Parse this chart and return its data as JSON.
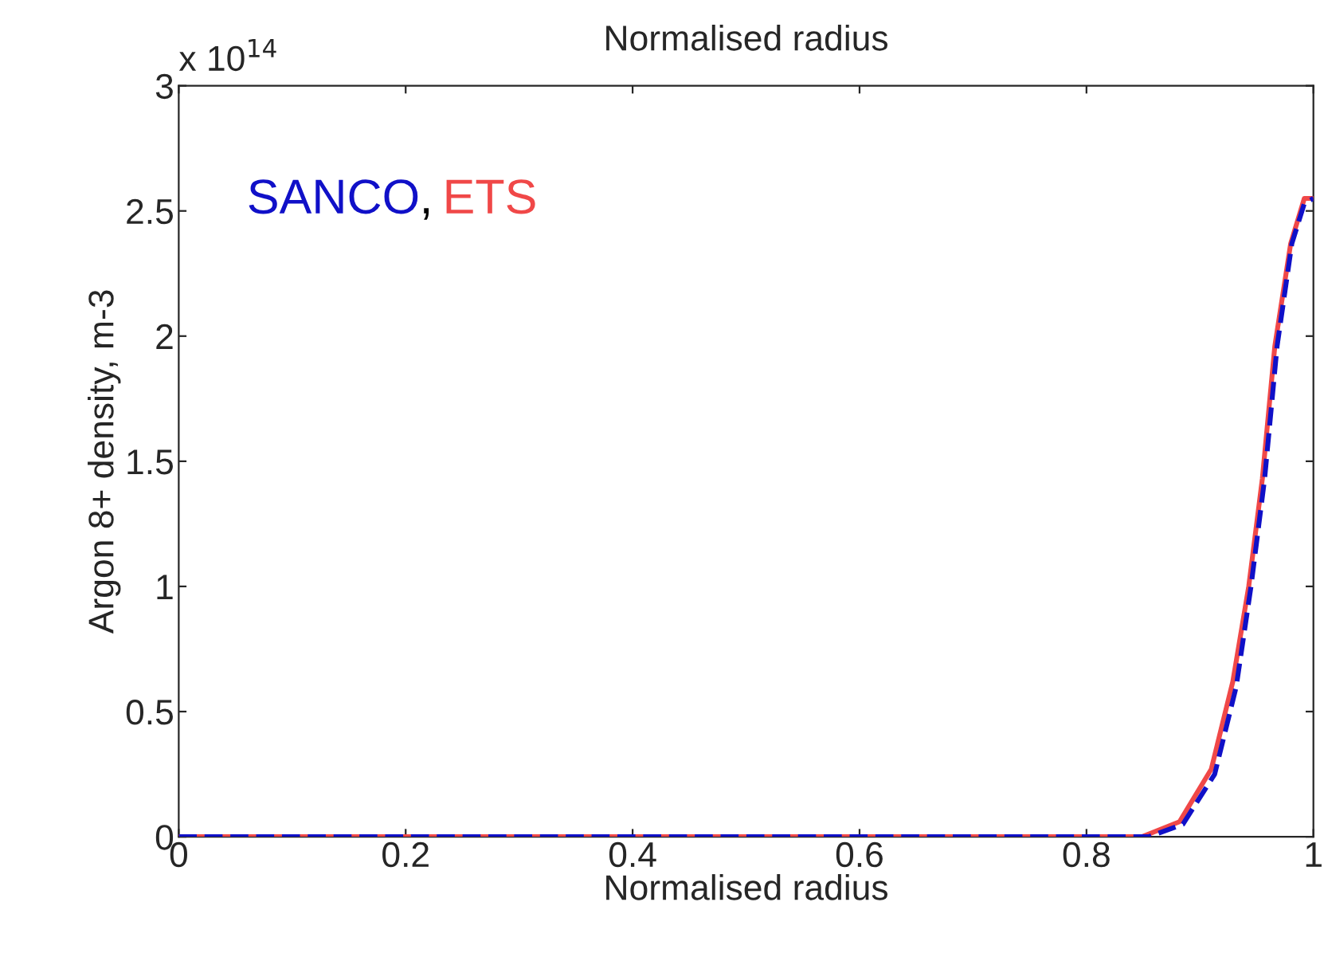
{
  "chart_data": {
    "type": "line",
    "title": "Normalised radius",
    "xlabel": "Normalised radius",
    "ylabel": "Argon 8+ density, m-3",
    "annotations": [
      ",",
      "x 10$^{14}$"
    ],
    "series": [
      {
        "name": "SANCO",
        "color": "#1010c8",
        "line_style": "dashed",
        "x": [
          0,
          0.855,
          0.885,
          0.913,
          0.932,
          0.945,
          0.957,
          0.968,
          0.981,
          0.992,
          1.0
        ],
        "values": [
          0,
          0,
          0.05,
          0.25,
          0.6,
          1.0,
          1.43,
          1.96,
          2.37,
          2.53,
          2.55
        ]
      },
      {
        "name": "ETS",
        "color": "#f04848",
        "line_style": "solid",
        "x": [
          0,
          0.849,
          0.882,
          0.91,
          0.929,
          0.943,
          0.955,
          0.966,
          0.98,
          0.992,
          1.0
        ],
        "values": [
          0,
          0,
          0.06,
          0.27,
          0.62,
          1.0,
          1.43,
          1.96,
          2.37,
          2.55,
          2.55
        ]
      }
    ],
    "xlim": [
      0,
      1
    ],
    "ylim": [
      0,
      3
    ],
    "xticks": [
      0,
      0.2,
      0.4,
      0.6,
      0.8,
      1
    ],
    "yticks": [
      0,
      0.5,
      1,
      1.5,
      2,
      2.5,
      3
    ],
    "grid": false,
    "legend": false,
    "marker": "none"
  }
}
